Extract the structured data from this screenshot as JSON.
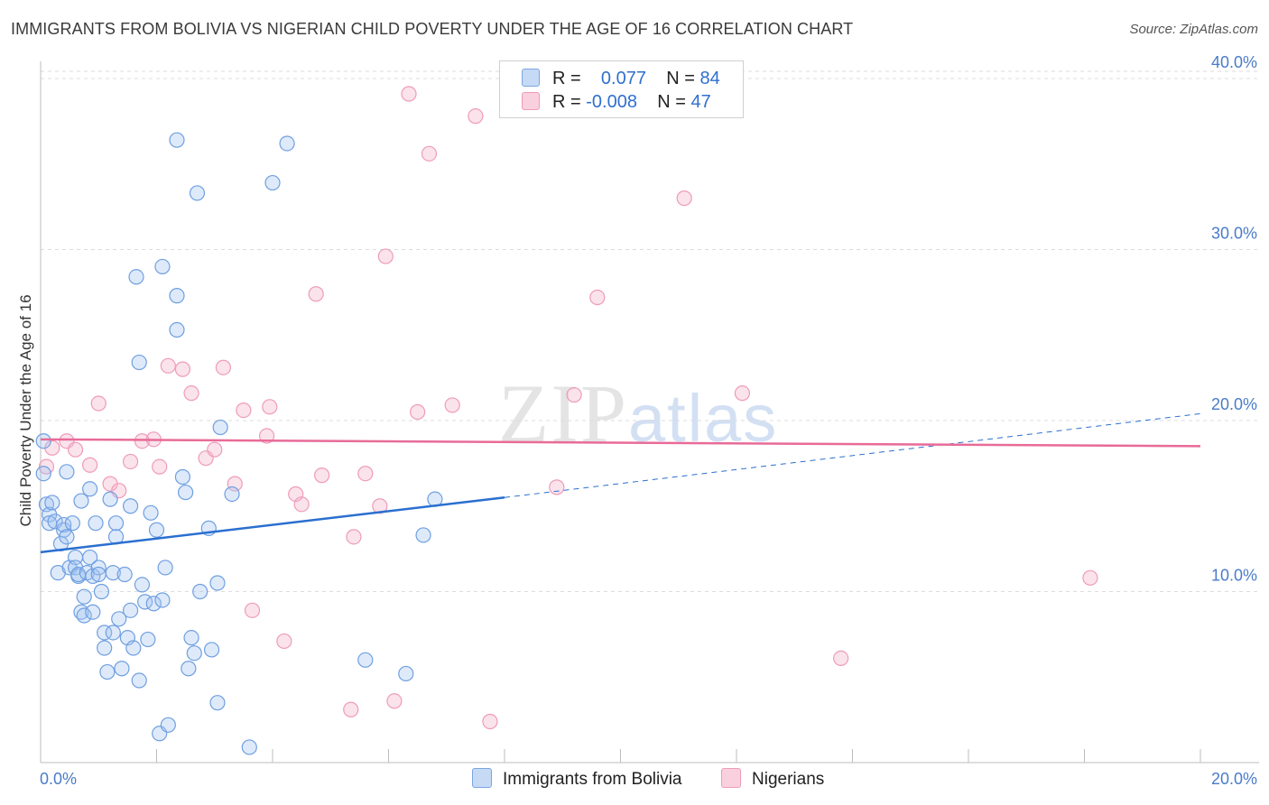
{
  "title": "IMMIGRANTS FROM BOLIVIA VS NIGERIAN CHILD POVERTY UNDER THE AGE OF 16 CORRELATION CHART",
  "source": "Source: ZipAtlas.com",
  "watermark": {
    "zip": "ZIP",
    "atlas": "atlas"
  },
  "legend": {
    "rows": [
      {
        "r_label": "R =",
        "r_value": "0.077",
        "n_label": "N =",
        "n_value": "84"
      },
      {
        "r_label": "R =",
        "r_value": "-0.008",
        "n_label": "N =",
        "n_value": "47"
      }
    ]
  },
  "bottom_legend": [
    "Immigrants from Bolivia",
    "Nigerians"
  ],
  "chart_data": {
    "type": "scatter",
    "title": "IMMIGRANTS FROM BOLIVIA VS NIGERIAN CHILD POVERTY UNDER THE AGE OF 16 CORRELATION CHART",
    "xlabel": "",
    "ylabel": "Child Poverty Under the Age of 16",
    "xlim": [
      0,
      20
    ],
    "ylim": [
      0,
      41
    ],
    "x_tick_labels": [
      "0.0%",
      "20.0%"
    ],
    "y_ticks": [
      10,
      20,
      30,
      40
    ],
    "y_tick_labels": [
      "10.0%",
      "20.0%",
      "30.0%",
      "40.0%"
    ],
    "grid": true,
    "legend_position": "top-center",
    "colors": {
      "bolivia": "#6f9fe0",
      "nigerians": "#f09ab8",
      "bolivia_line": "#2a6fd0",
      "nigerians_line": "#e86b98"
    },
    "series": [
      {
        "name": "Immigrants from Bolivia",
        "trend": {
          "x0": 0,
          "y0": 12.3,
          "x1": 8.0,
          "y1": 15.5,
          "dashed_to_x": 20,
          "dashed_to_y": 20.4
        },
        "points": [
          [
            0.05,
            18.8
          ],
          [
            0.05,
            16.9
          ],
          [
            0.1,
            15.1
          ],
          [
            0.15,
            14.5
          ],
          [
            0.15,
            14.0
          ],
          [
            0.2,
            15.2
          ],
          [
            0.25,
            14.1
          ],
          [
            0.3,
            11.1
          ],
          [
            0.35,
            12.8
          ],
          [
            0.4,
            13.6
          ],
          [
            0.4,
            13.9
          ],
          [
            0.45,
            13.2
          ],
          [
            0.45,
            17.0
          ],
          [
            0.5,
            11.4
          ],
          [
            0.55,
            14.0
          ],
          [
            0.6,
            12.0
          ],
          [
            0.6,
            11.4
          ],
          [
            0.65,
            10.9
          ],
          [
            0.65,
            11.0
          ],
          [
            0.7,
            8.8
          ],
          [
            0.7,
            15.3
          ],
          [
            0.75,
            8.6
          ],
          [
            0.75,
            9.7
          ],
          [
            0.8,
            11.1
          ],
          [
            0.85,
            16.0
          ],
          [
            0.85,
            12.0
          ],
          [
            0.9,
            10.9
          ],
          [
            0.9,
            8.8
          ],
          [
            0.95,
            14.0
          ],
          [
            1.0,
            11.4
          ],
          [
            1.0,
            11.0
          ],
          [
            1.05,
            10.0
          ],
          [
            1.1,
            7.6
          ],
          [
            1.1,
            6.7
          ],
          [
            1.15,
            5.3
          ],
          [
            1.2,
            15.4
          ],
          [
            1.25,
            11.1
          ],
          [
            1.25,
            7.6
          ],
          [
            1.3,
            14.0
          ],
          [
            1.3,
            13.2
          ],
          [
            1.35,
            8.4
          ],
          [
            1.4,
            5.5
          ],
          [
            1.45,
            11.0
          ],
          [
            1.5,
            7.3
          ],
          [
            1.55,
            8.9
          ],
          [
            1.6,
            6.7
          ],
          [
            1.7,
            4.8
          ],
          [
            1.75,
            10.4
          ],
          [
            1.8,
            9.4
          ],
          [
            1.85,
            7.2
          ],
          [
            1.9,
            14.6
          ],
          [
            1.95,
            9.3
          ],
          [
            2.0,
            13.6
          ],
          [
            2.05,
            1.7
          ],
          [
            2.1,
            9.5
          ],
          [
            2.15,
            11.4
          ],
          [
            2.2,
            2.2
          ],
          [
            2.45,
            16.7
          ],
          [
            2.5,
            15.8
          ],
          [
            2.55,
            5.5
          ],
          [
            2.65,
            6.4
          ],
          [
            2.6,
            7.3
          ],
          [
            2.75,
            10.0
          ],
          [
            2.9,
            13.7
          ],
          [
            2.95,
            6.6
          ],
          [
            3.05,
            3.5
          ],
          [
            3.05,
            10.5
          ],
          [
            3.1,
            19.6
          ],
          [
            3.3,
            15.7
          ],
          [
            3.6,
            0.9
          ],
          [
            1.7,
            23.4
          ],
          [
            1.65,
            28.4
          ],
          [
            2.1,
            29.0
          ],
          [
            2.35,
            27.3
          ],
          [
            2.35,
            25.3
          ],
          [
            2.35,
            36.4
          ],
          [
            2.7,
            33.3
          ],
          [
            4.0,
            33.9
          ],
          [
            4.25,
            36.2
          ],
          [
            5.6,
            6.0
          ],
          [
            6.3,
            5.2
          ],
          [
            6.6,
            13.3
          ],
          [
            6.8,
            15.4
          ],
          [
            1.55,
            15.0
          ]
        ]
      },
      {
        "name": "Nigerians",
        "trend": {
          "x0": 0,
          "y0": 18.9,
          "x1": 20,
          "y1": 18.5
        },
        "points": [
          [
            0.1,
            17.3
          ],
          [
            0.2,
            18.4
          ],
          [
            0.45,
            18.8
          ],
          [
            0.6,
            18.3
          ],
          [
            0.85,
            17.4
          ],
          [
            1.0,
            21.0
          ],
          [
            1.2,
            16.3
          ],
          [
            1.35,
            15.9
          ],
          [
            1.55,
            17.6
          ],
          [
            1.75,
            18.8
          ],
          [
            1.95,
            18.9
          ],
          [
            2.05,
            17.3
          ],
          [
            2.2,
            23.2
          ],
          [
            2.45,
            23.0
          ],
          [
            2.6,
            21.6
          ],
          [
            2.85,
            17.8
          ],
          [
            3.0,
            18.3
          ],
          [
            3.15,
            23.1
          ],
          [
            3.35,
            16.3
          ],
          [
            3.5,
            20.6
          ],
          [
            3.65,
            8.9
          ],
          [
            3.9,
            19.1
          ],
          [
            3.95,
            20.8
          ],
          [
            4.2,
            7.1
          ],
          [
            4.4,
            15.7
          ],
          [
            4.5,
            15.1
          ],
          [
            4.75,
            27.4
          ],
          [
            4.85,
            16.8
          ],
          [
            5.35,
            3.1
          ],
          [
            5.4,
            13.2
          ],
          [
            5.6,
            16.9
          ],
          [
            5.85,
            15.0
          ],
          [
            5.95,
            29.6
          ],
          [
            6.1,
            3.6
          ],
          [
            6.35,
            39.1
          ],
          [
            6.5,
            20.5
          ],
          [
            6.7,
            35.6
          ],
          [
            7.1,
            20.9
          ],
          [
            7.5,
            37.8
          ],
          [
            7.75,
            2.4
          ],
          [
            8.9,
            16.1
          ],
          [
            9.2,
            21.5
          ],
          [
            9.6,
            27.2
          ],
          [
            11.1,
            33.0
          ],
          [
            12.1,
            21.6
          ],
          [
            13.8,
            6.1
          ],
          [
            18.1,
            10.8
          ]
        ]
      }
    ]
  }
}
